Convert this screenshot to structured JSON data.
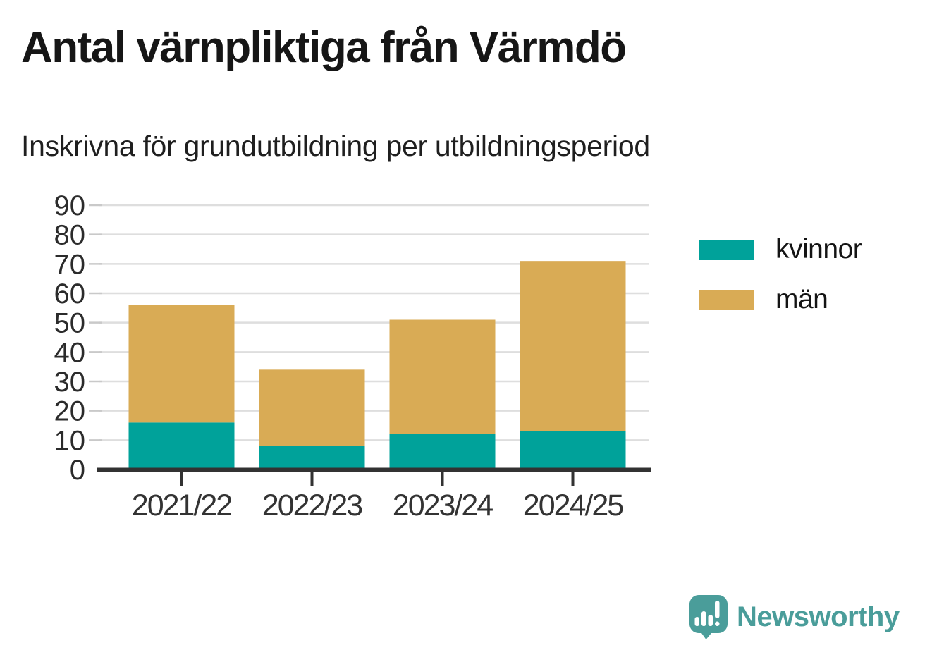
{
  "header": {
    "title": "Antal värnpliktiga från Värmdö",
    "subtitle": "Inskrivna för grundutbildning per utbildningsperiod"
  },
  "chart_data": {
    "type": "bar",
    "stacked": true,
    "categories": [
      "2021/22",
      "2022/23",
      "2023/24",
      "2024/25"
    ],
    "series": [
      {
        "name": "kvinnor",
        "color": "#00a29a",
        "values": [
          16,
          8,
          12,
          13
        ]
      },
      {
        "name": "män",
        "color": "#d9ab55",
        "values": [
          40,
          26,
          39,
          58
        ]
      }
    ],
    "totals": [
      56,
      34,
      51,
      71
    ],
    "ylim": [
      0,
      90
    ],
    "yticks": [
      0,
      10,
      20,
      30,
      40,
      50,
      60,
      70,
      80,
      90
    ],
    "grid": "horizontal",
    "legend_position": "right",
    "axis_color": "#323232",
    "grid_color": "#dedede",
    "tick_color": "#c9c9c9",
    "label_color": "#333333"
  },
  "branding": {
    "name": "Newsworthy",
    "logo_icon": "chart-speech-bubble-icon",
    "color": "#4a9d9a"
  }
}
